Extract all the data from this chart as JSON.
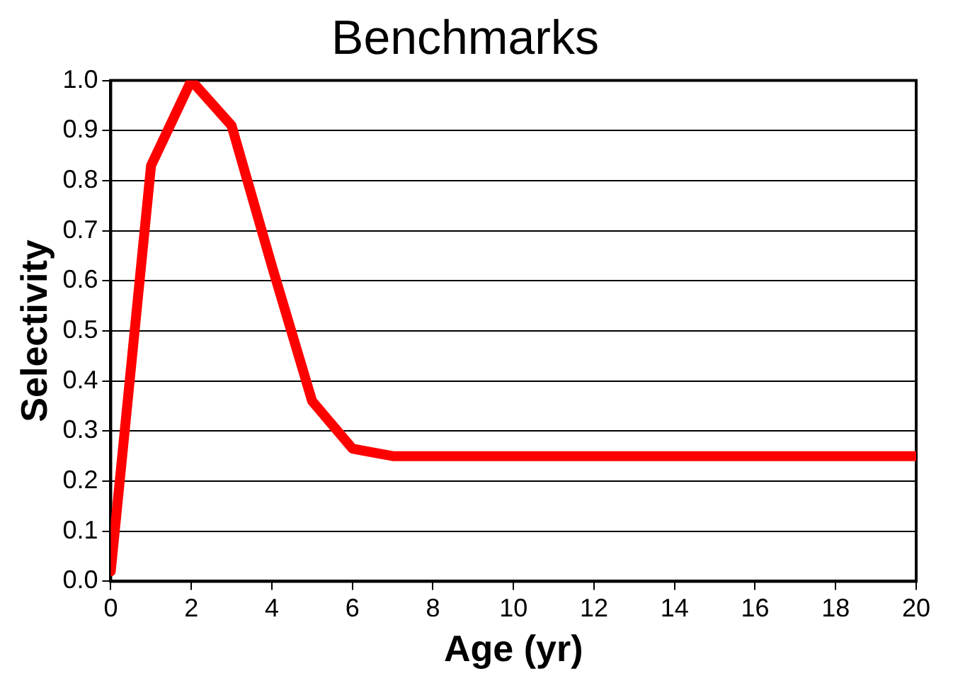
{
  "chart_data": {
    "type": "line",
    "title": "Benchmarks",
    "xlabel": "Age (yr)",
    "ylabel": "Selectivity",
    "x": [
      0,
      1,
      2,
      3,
      4,
      5,
      6,
      7,
      8,
      9,
      10,
      11,
      12,
      13,
      14,
      15,
      16,
      17,
      18,
      19,
      20
    ],
    "series": [
      {
        "color": "#ff0000",
        "values": [
          0.02,
          0.83,
          1.0,
          0.91,
          0.63,
          0.36,
          0.265,
          0.25,
          0.25,
          0.25,
          0.25,
          0.25,
          0.25,
          0.25,
          0.25,
          0.25,
          0.25,
          0.25,
          0.25,
          0.25,
          0.25
        ]
      }
    ],
    "xlim": [
      0,
      20
    ],
    "xticks": [
      0,
      2,
      4,
      6,
      8,
      10,
      12,
      14,
      16,
      18,
      20
    ],
    "ylim": [
      0,
      1
    ],
    "yticks": [
      {
        "value": 0,
        "label": "0.0"
      },
      {
        "value": 0.1,
        "label": "0.1"
      },
      {
        "value": 0.2,
        "label": "0.2"
      },
      {
        "value": 0.3,
        "label": "0.3"
      },
      {
        "value": 0.4,
        "label": "0.4"
      },
      {
        "value": 0.5,
        "label": "0.5"
      },
      {
        "value": 0.6,
        "label": "0.6"
      },
      {
        "value": 0.7,
        "label": "0.7"
      },
      {
        "value": 0.8,
        "label": "0.8"
      },
      {
        "value": 0.9,
        "label": "0.9"
      },
      {
        "value": 1,
        "label": "1.0"
      }
    ],
    "grid": "y",
    "legend": false,
    "marker": "none",
    "line_style": "solid"
  }
}
